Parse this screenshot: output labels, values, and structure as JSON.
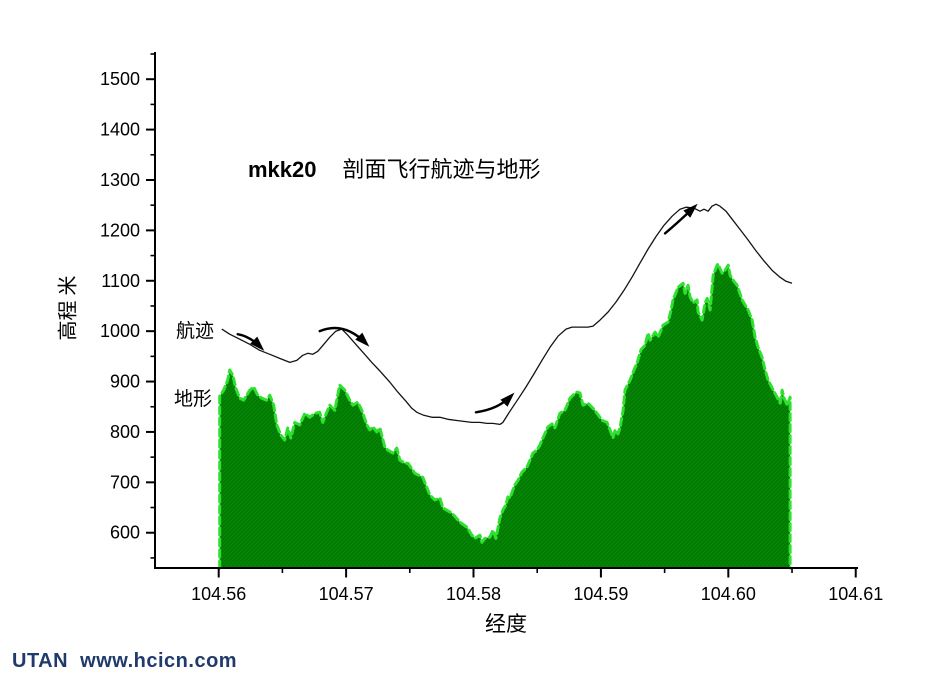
{
  "watermark": {
    "text": "UTAN  www.hcicn.com",
    "color": "#1f3a6b"
  },
  "chart_data": {
    "type": "area",
    "title": {
      "prefix": "mkk20",
      "text": "剖面飞行航迹与地形"
    },
    "xlabel": "经度",
    "ylabel": "高程 米",
    "legend_position": "inline-annotations",
    "grid": false,
    "colors": {
      "terrain_fill": "#007c00",
      "terrain_edge": "#2fe12f",
      "trajectory": "#141414",
      "axis": "#000000",
      "text": "#000000"
    },
    "x_axis": {
      "min": 104.555,
      "max": 104.6101,
      "major": [
        104.56,
        104.57,
        104.58,
        104.59,
        104.6,
        104.61
      ],
      "labels": [
        "104.56",
        "104.57",
        "104.58",
        "104.59",
        "104.60",
        "104.61"
      ],
      "minor": [
        104.565,
        104.575,
        104.585,
        104.595,
        104.605
      ]
    },
    "y_axis": {
      "min": 530,
      "max": 1552,
      "major": [
        600,
        700,
        800,
        900,
        1000,
        1100,
        1200,
        1300,
        1400,
        1500
      ],
      "labels": [
        "600",
        "700",
        "800",
        "900",
        "1000",
        "1100",
        "1200",
        "1300",
        "1400",
        "1500"
      ],
      "minor": [
        550,
        650,
        750,
        850,
        950,
        1050,
        1150,
        1250,
        1350,
        1450,
        1550
      ]
    },
    "series": {
      "terrain": {
        "label": "地形",
        "points": [
          [
            104.56008,
            871
          ],
          [
            104.56039,
            883
          ],
          [
            104.56071,
            903
          ],
          [
            104.56086,
            923
          ],
          [
            104.5611,
            913
          ],
          [
            104.56134,
            887
          ],
          [
            104.56165,
            867
          ],
          [
            104.56196,
            863
          ],
          [
            104.56244,
            883
          ],
          [
            104.56275,
            889
          ],
          [
            104.56306,
            873
          ],
          [
            104.56338,
            867
          ],
          [
            104.56377,
            863
          ],
          [
            104.56401,
            873
          ],
          [
            104.56432,
            853
          ],
          [
            104.56456,
            814
          ],
          [
            104.56487,
            794
          ],
          [
            104.56518,
            784
          ],
          [
            104.56542,
            808
          ],
          [
            104.56566,
            788
          ],
          [
            104.56597,
            819
          ],
          [
            104.56636,
            814
          ],
          [
            104.56676,
            837
          ],
          [
            104.56715,
            829
          ],
          [
            104.56754,
            837
          ],
          [
            104.56793,
            839
          ],
          [
            104.56817,
            819
          ],
          [
            104.56848,
            839
          ],
          [
            104.56872,
            853
          ],
          [
            104.56911,
            843
          ],
          [
            104.5695,
            893
          ],
          [
            104.5699,
            883
          ],
          [
            104.57029,
            863
          ],
          [
            104.57053,
            853
          ],
          [
            104.57092,
            859
          ],
          [
            104.57123,
            843
          ],
          [
            104.57163,
            814
          ],
          [
            104.57186,
            804
          ],
          [
            104.5721,
            810
          ],
          [
            104.57241,
            800
          ],
          [
            104.57265,
            808
          ],
          [
            104.57304,
            770
          ],
          [
            104.57327,
            764
          ],
          [
            104.57367,
            758
          ],
          [
            104.57398,
            768
          ],
          [
            104.57422,
            744
          ],
          [
            104.57461,
            738
          ],
          [
            104.57485,
            738
          ],
          [
            104.5754,
            718
          ],
          [
            104.57602,
            710
          ],
          [
            104.57657,
            675
          ],
          [
            104.57697,
            665
          ],
          [
            104.57736,
            669
          ],
          [
            104.5776,
            649
          ],
          [
            104.5783,
            639
          ],
          [
            104.57893,
            621
          ],
          [
            104.57948,
            611
          ],
          [
            104.57987,
            595
          ],
          [
            104.58011,
            589
          ],
          [
            104.5805,
            595
          ],
          [
            104.58066,
            581
          ],
          [
            104.58089,
            589
          ],
          [
            104.58129,
            591
          ],
          [
            104.58152,
            605
          ],
          [
            104.58176,
            589
          ],
          [
            104.58207,
            629
          ],
          [
            104.58231,
            645
          ],
          [
            104.58254,
            655
          ],
          [
            104.5827,
            671
          ],
          [
            104.58286,
            669
          ],
          [
            104.58309,
            685
          ],
          [
            104.58325,
            695
          ],
          [
            104.58349,
            704
          ],
          [
            104.5838,
            720
          ],
          [
            104.58419,
            730
          ],
          [
            104.58443,
            744
          ],
          [
            104.58466,
            758
          ],
          [
            104.58498,
            764
          ],
          [
            104.58521,
            774
          ],
          [
            104.58545,
            788
          ],
          [
            104.58584,
            810
          ],
          [
            104.58616,
            816
          ],
          [
            104.58639,
            808
          ],
          [
            104.58678,
            837
          ],
          [
            104.58718,
            843
          ],
          [
            104.58757,
            867
          ],
          [
            104.58781,
            873
          ],
          [
            104.58812,
            879
          ],
          [
            104.58836,
            877
          ],
          [
            104.58859,
            853
          ],
          [
            104.58899,
            857
          ],
          [
            104.58938,
            847
          ],
          [
            104.58969,
            837
          ],
          [
            104.59009,
            823
          ],
          [
            104.59048,
            819
          ],
          [
            104.59071,
            804
          ],
          [
            104.59095,
            788
          ],
          [
            104.59111,
            804
          ],
          [
            104.59134,
            796
          ],
          [
            104.5915,
            808
          ],
          [
            104.59174,
            843
          ],
          [
            104.59189,
            883
          ],
          [
            104.59229,
            903
          ],
          [
            104.5926,
            923
          ],
          [
            104.59284,
            937
          ],
          [
            104.59315,
            963
          ],
          [
            104.59346,
            972
          ],
          [
            104.5937,
            996
          ],
          [
            104.59386,
            982
          ],
          [
            104.59425,
            998
          ],
          [
            104.59449,
            988
          ],
          [
            104.59488,
            1012
          ],
          [
            104.59527,
            1018
          ],
          [
            104.59551,
            1042
          ],
          [
            104.59566,
            1062
          ],
          [
            104.59606,
            1087
          ],
          [
            104.59645,
            1095
          ],
          [
            104.59661,
            1075
          ],
          [
            104.59684,
            1091
          ],
          [
            104.597,
            1068
          ],
          [
            104.59724,
            1056
          ],
          [
            104.59755,
            1062
          ],
          [
            104.59763,
            1038
          ],
          [
            104.59794,
            1022
          ],
          [
            104.59818,
            1056
          ],
          [
            104.59834,
            1065
          ],
          [
            104.59857,
            1042
          ],
          [
            104.59881,
            1111
          ],
          [
            104.59912,
            1131
          ],
          [
            104.5992,
            1133
          ],
          [
            104.59951,
            1115
          ],
          [
            104.59975,
            1121
          ],
          [
            104.59999,
            1131
          ],
          [
            104.60014,
            1111
          ],
          [
            104.60038,
            1101
          ],
          [
            104.60069,
            1091
          ],
          [
            104.60108,
            1062
          ],
          [
            104.60132,
            1052
          ],
          [
            104.60156,
            1042
          ],
          [
            104.60187,
            1022
          ],
          [
            104.6021,
            988
          ],
          [
            104.60234,
            968
          ],
          [
            104.60265,
            948
          ],
          [
            104.60289,
            923
          ],
          [
            104.60312,
            903
          ],
          [
            104.60352,
            883
          ],
          [
            104.60383,
            869
          ],
          [
            104.60407,
            857
          ],
          [
            104.60422,
            883
          ],
          [
            104.60438,
            867
          ],
          [
            104.60462,
            853
          ],
          [
            104.60485,
            869
          ]
        ]
      },
      "trajectory": {
        "label": "航迹",
        "points": [
          [
            104.56024,
            1004
          ],
          [
            104.56086,
            994
          ],
          [
            104.56165,
            984
          ],
          [
            104.56244,
            974
          ],
          [
            104.56322,
            962
          ],
          [
            104.56401,
            954
          ],
          [
            104.56479,
            946
          ],
          [
            104.56558,
            938
          ],
          [
            104.56613,
            942
          ],
          [
            104.5666,
            952
          ],
          [
            104.56699,
            956
          ],
          [
            104.56738,
            954
          ],
          [
            104.56778,
            960
          ],
          [
            104.56825,
            974
          ],
          [
            104.56872,
            988
          ],
          [
            104.56919,
            1000
          ],
          [
            104.56966,
            1004
          ],
          [
            104.57013,
            992
          ],
          [
            104.57076,
            974
          ],
          [
            104.57139,
            956
          ],
          [
            104.57202,
            938
          ],
          [
            104.57265,
            921
          ],
          [
            104.57343,
            899
          ],
          [
            104.57406,
            879
          ],
          [
            104.57469,
            861
          ],
          [
            104.57516,
            847
          ],
          [
            104.57555,
            839
          ],
          [
            104.5761,
            833
          ],
          [
            104.57673,
            829
          ],
          [
            104.57736,
            829
          ],
          [
            104.57799,
            825
          ],
          [
            104.57862,
            823
          ],
          [
            104.57924,
            821
          ],
          [
            104.57987,
            819
          ],
          [
            104.5805,
            819
          ],
          [
            104.58105,
            817
          ],
          [
            104.58152,
            817
          ],
          [
            104.58207,
            815
          ],
          [
            104.58231,
            819
          ],
          [
            104.58286,
            841
          ],
          [
            104.58349,
            865
          ],
          [
            104.58411,
            889
          ],
          [
            104.58474,
            915
          ],
          [
            104.58537,
            942
          ],
          [
            104.586,
            968
          ],
          [
            104.58663,
            990
          ],
          [
            104.58726,
            1004
          ],
          [
            104.58773,
            1008
          ],
          [
            104.58836,
            1008
          ],
          [
            104.58899,
            1008
          ],
          [
            104.58938,
            1010
          ],
          [
            104.58993,
            1022
          ],
          [
            104.59056,
            1038
          ],
          [
            104.59119,
            1058
          ],
          [
            104.59181,
            1081
          ],
          [
            104.59244,
            1107
          ],
          [
            104.59307,
            1135
          ],
          [
            104.5937,
            1163
          ],
          [
            104.59433,
            1188
          ],
          [
            104.59495,
            1210
          ],
          [
            104.59558,
            1228
          ],
          [
            104.59621,
            1242
          ],
          [
            104.59668,
            1246
          ],
          [
            104.59731,
            1244
          ],
          [
            104.59778,
            1238
          ],
          [
            104.59809,
            1242
          ],
          [
            104.59841,
            1238
          ],
          [
            104.59872,
            1248
          ],
          [
            104.59904,
            1252
          ],
          [
            104.59935,
            1248
          ],
          [
            104.59982,
            1238
          ],
          [
            104.60037,
            1220
          ],
          [
            104.60092,
            1202
          ],
          [
            104.60155,
            1181
          ],
          [
            104.60218,
            1159
          ],
          [
            104.60281,
            1139
          ],
          [
            104.60343,
            1121
          ],
          [
            104.60406,
            1107
          ],
          [
            104.60453,
            1099
          ],
          [
            104.605,
            1095
          ]
        ]
      }
    },
    "arrows": [
      {
        "from": [
          104.56149,
          994
        ],
        "ctrl": [
          104.56244,
          990
        ],
        "to": [
          104.5633,
          968
        ]
      },
      {
        "from": [
          104.56793,
          1000
        ],
        "ctrl": [
          104.56982,
          1020
        ],
        "to": [
          104.57155,
          976
        ]
      },
      {
        "from": [
          104.58019,
          839
        ],
        "ctrl": [
          104.58192,
          845
        ],
        "to": [
          104.58294,
          871
        ]
      },
      {
        "from": [
          104.59503,
          1194
        ],
        "ctrl": [
          104.59606,
          1216
        ],
        "to": [
          104.59731,
          1246
        ]
      }
    ]
  }
}
